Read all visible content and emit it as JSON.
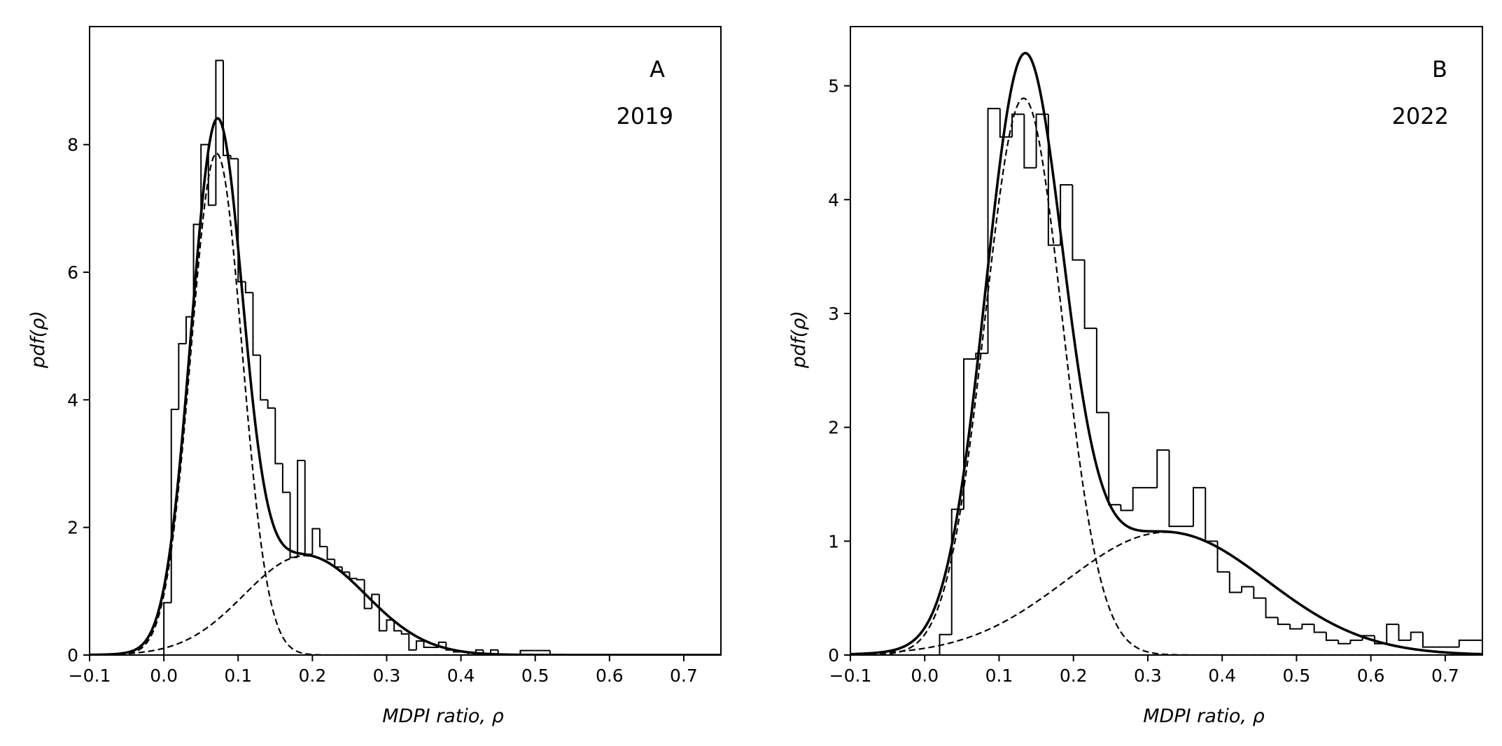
{
  "chart_data": [
    {
      "type": "histogram",
      "panel_label": "A",
      "year_label": "2019",
      "xlabel": "MDPI ratio, ρ",
      "ylabel": "pdf(ρ)",
      "xlim": [
        -0.1,
        0.75
      ],
      "ylim": [
        0,
        9.85
      ],
      "xticks": [
        "−0.1",
        "0.0",
        "0.1",
        "0.2",
        "0.3",
        "0.4",
        "0.5",
        "0.6",
        "0.7"
      ],
      "xtick_values": [
        -0.1,
        0.0,
        0.1,
        0.2,
        0.3,
        0.4,
        0.5,
        0.6,
        0.7
      ],
      "yticks": [
        "0",
        "2",
        "4",
        "6",
        "8"
      ],
      "ytick_values": [
        0,
        2,
        4,
        6,
        8
      ],
      "histogram": {
        "bin_start": 0.0,
        "bin_width": 0.01,
        "values": [
          0.82,
          3.85,
          4.88,
          5.3,
          6.75,
          8.0,
          7.05,
          9.32,
          7.83,
          7.78,
          5.85,
          5.68,
          4.7,
          4.0,
          3.87,
          3.0,
          2.55,
          1.53,
          3.05,
          1.58,
          1.98,
          1.7,
          1.5,
          1.38,
          1.3,
          1.2,
          1.18,
          0.73,
          0.95,
          0.38,
          0.55,
          0.38,
          0.33,
          0.08,
          0.22,
          0.12,
          0.12,
          0.2,
          0.08,
          0.05,
          0.05,
          0.0,
          0.08,
          0.0,
          0.08,
          0.0,
          0.0,
          0.0,
          0.07,
          0.07,
          0.07,
          0.07
        ]
      },
      "fit": {
        "components": [
          {
            "weight": 0.68,
            "mean": 0.071,
            "sd": 0.0345
          },
          {
            "weight": 0.32,
            "mean": 0.19,
            "sd": 0.082
          }
        ]
      }
    },
    {
      "type": "histogram",
      "panel_label": "B",
      "year_label": "2022",
      "xlabel": "MDPI ratio, ρ",
      "ylabel": "pdf(ρ)",
      "xlim": [
        -0.1,
        0.75
      ],
      "ylim": [
        0,
        5.52
      ],
      "xticks": [
        "−0.1",
        "0.0",
        "0.1",
        "0.2",
        "0.3",
        "0.4",
        "0.5",
        "0.6",
        "0.7"
      ],
      "xtick_values": [
        -0.1,
        0.0,
        0.1,
        0.2,
        0.3,
        0.4,
        0.5,
        0.6,
        0.7
      ],
      "yticks": [
        "0",
        "1",
        "2",
        "3",
        "4",
        "5"
      ],
      "ytick_values": [
        0,
        1,
        2,
        3,
        4,
        5
      ],
      "histogram": {
        "bin_start": 0.02,
        "bin_width": 0.01625,
        "values": [
          0.18,
          1.28,
          2.6,
          2.65,
          4.8,
          4.55,
          4.75,
          4.28,
          4.75,
          3.6,
          4.13,
          3.47,
          2.87,
          2.13,
          1.32,
          1.27,
          1.47,
          1.47,
          1.8,
          1.13,
          1.13,
          1.47,
          1.0,
          0.73,
          0.55,
          0.6,
          0.5,
          0.33,
          0.27,
          0.23,
          0.27,
          0.2,
          0.13,
          0.1,
          0.13,
          0.17,
          0.1,
          0.27,
          0.13,
          0.2,
          0.07,
          0.07,
          0.07,
          0.13,
          0.13,
          0.07,
          0.1
        ]
      },
      "fit": {
        "components": [
          {
            "weight": 0.635,
            "mean": 0.133,
            "sd": 0.0518
          },
          {
            "weight": 0.365,
            "mean": 0.325,
            "sd": 0.135
          }
        ]
      }
    }
  ]
}
